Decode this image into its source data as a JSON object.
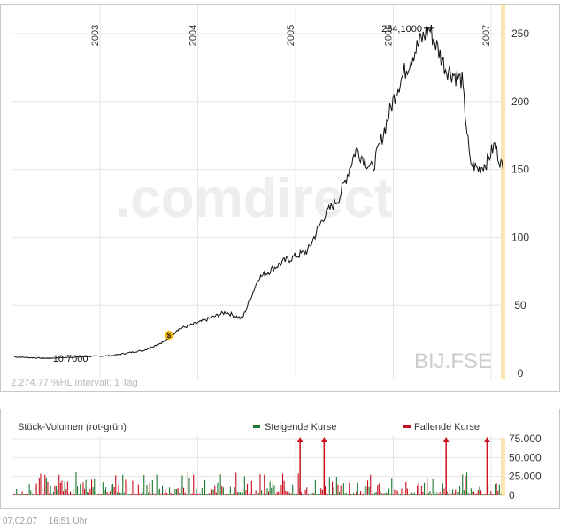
{
  "chart_data": [
    {
      "type": "line",
      "x_ticks": [
        "2003",
        "2004",
        "2005",
        "2006",
        "2007"
      ],
      "y_ticks": [
        0,
        50,
        100,
        150,
        200,
        250
      ],
      "ylim": [
        0,
        260
      ],
      "xlim": [
        "2002-02-07",
        "2007-02-07"
      ],
      "symbol": "BIJ.FSE",
      "watermark": ".comdirect",
      "info_label": "2.274,77 %HL Intervall: 1 Tag",
      "annotations": {
        "max_label": "254,1000",
        "min_label": "10,7000",
        "event_marker": "$"
      },
      "series": [
        {
          "x": [
            "2002-02",
            "2002-06",
            "2002-10",
            "2003-02",
            "2003-06",
            "2003-09",
            "2003-10",
            "2004-01",
            "2004-04",
            "2004-06",
            "2004-08",
            "2004-11",
            "2005-02",
            "2005-04",
            "2005-06",
            "2005-08",
            "2005-10",
            "2005-12",
            "2006-01",
            "2006-03",
            "2006-04",
            "2006-05",
            "2006-07",
            "2006-09",
            "2006-10",
            "2006-11",
            "2006-12",
            "2007-01",
            "2007-02"
          ],
          "values": [
            12,
            11,
            12,
            13,
            17,
            25,
            32,
            38,
            45,
            40,
            70,
            82,
            90,
            115,
            130,
            165,
            150,
            190,
            210,
            235,
            245,
            254,
            225,
            215,
            155,
            150,
            155,
            168,
            150
          ]
        }
      ]
    },
    {
      "type": "bar",
      "title": "Stück-Volumen (rot-grün)",
      "legend": [
        "Steigende Kurse",
        "Fallende Kurse"
      ],
      "colors": {
        "rising": "#1e7a2e",
        "falling": "#c8101e"
      },
      "y_ticks": [
        "0",
        "25.000",
        "50.000",
        "75.000"
      ],
      "ylim": [
        0,
        75000
      ],
      "typical_range": [
        2000,
        20000
      ],
      "spikes": [
        {
          "date": "2005-01",
          "value": 75000,
          "series": "Fallende Kurse"
        },
        {
          "date": "2005-04",
          "value": 75000,
          "series": "Fallende Kurse"
        },
        {
          "date": "2006-07",
          "value": 75000,
          "series": "Fallende Kurse"
        },
        {
          "date": "2006-12",
          "value": 75000,
          "series": "Fallende Kurse"
        }
      ]
    }
  ],
  "footer": {
    "date": "07.02.07",
    "time": "16:51 Uhr"
  }
}
